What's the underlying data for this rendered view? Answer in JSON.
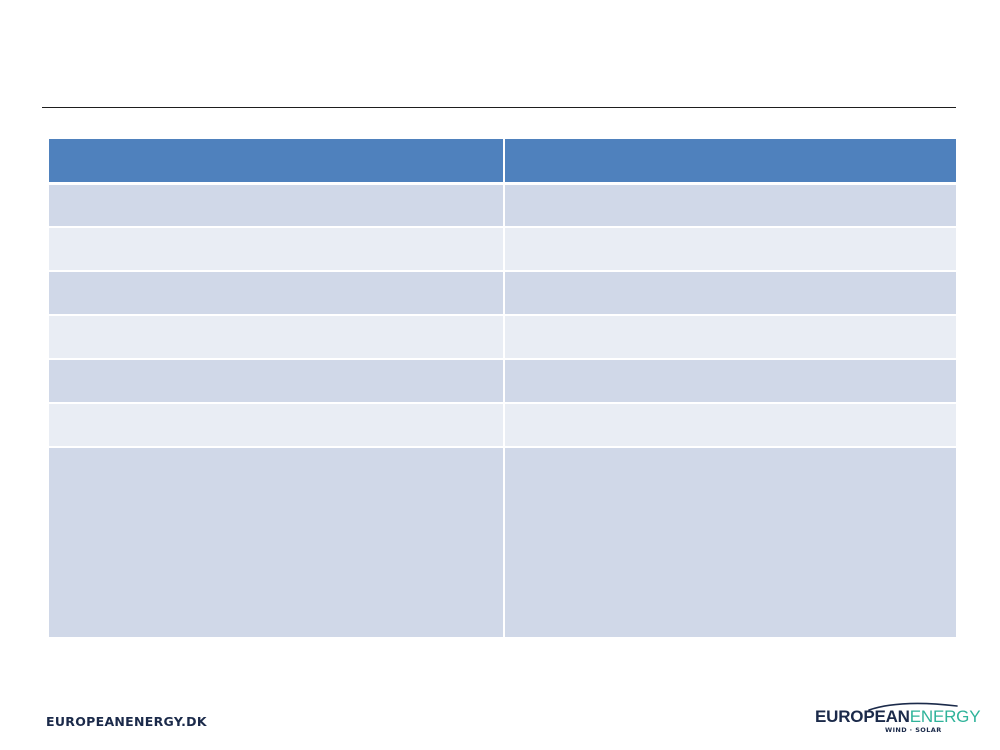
{
  "slide": {
    "title": ""
  },
  "table": {
    "headers": [
      "",
      ""
    ],
    "rows": [
      [
        "",
        ""
      ],
      [
        "",
        ""
      ],
      [
        "",
        ""
      ],
      [
        "",
        ""
      ],
      [
        "",
        ""
      ],
      [
        "",
        ""
      ],
      [
        "",
        ""
      ]
    ]
  },
  "footer": {
    "website": "EUROPEANENERGY.DK",
    "logo": {
      "word_bold": "EUROPEAN",
      "word_light": "ENERGY",
      "tagline": "WIND · SOLAR",
      "colors": {
        "navy": "#1b2a4a",
        "green": "#2fb39a"
      }
    }
  },
  "colors": {
    "header_fill": "#4f81bd",
    "row_odd": "#d0d8e8",
    "row_even": "#e9edf4"
  }
}
